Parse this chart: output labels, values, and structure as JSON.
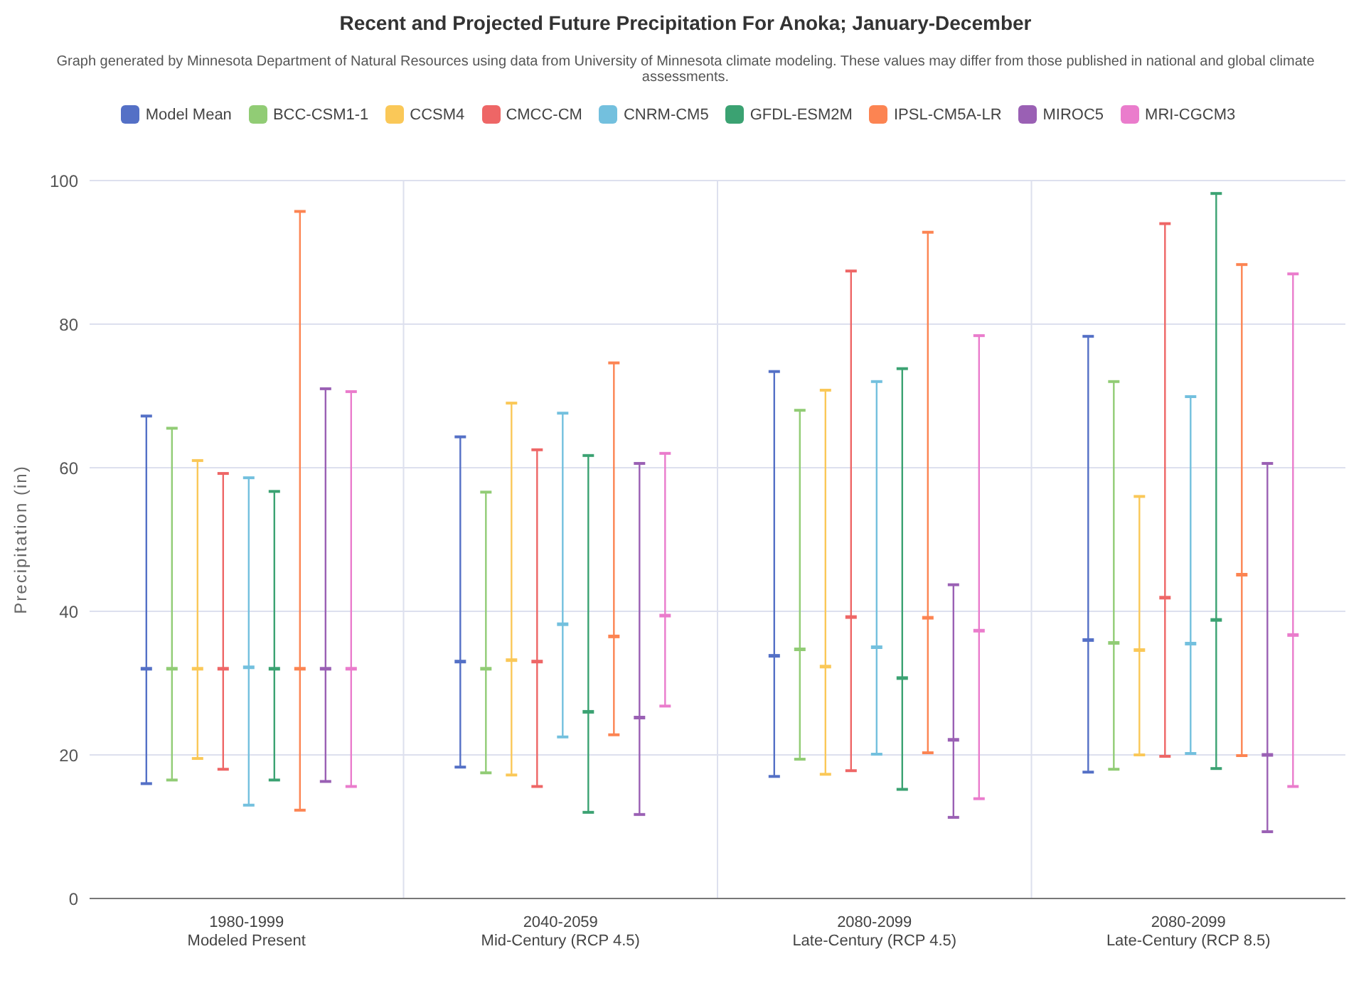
{
  "chart_data": {
    "type": "box",
    "title": "Recent and Projected Future Precipitation For Anoka; January-December",
    "subtitle": "Graph generated by Minnesota Department of Natural Resources using data from University of Minnesota climate modeling. These values may differ from those published in national and global climate assessments.",
    "ylabel": "Precipitation (in)",
    "categories": [
      "1980-1999\nModeled Present",
      "2040-2059\nMid-Century (RCP 4.5)",
      "2080-2099\nLate-Century (RCP 4.5)",
      "2080-2099\nLate-Century (RCP 8.5)"
    ],
    "ylim": [
      0,
      100
    ],
    "yticks": [
      0,
      20,
      40,
      60,
      80,
      100
    ],
    "grid": true,
    "legend": "top",
    "series": [
      {
        "name": "Model Mean",
        "color": "#5470c6",
        "boxes": [
          {
            "low": 16,
            "q1": 32,
            "median": 32,
            "q3": 32,
            "high": 67.2
          },
          {
            "low": 18.3,
            "q1": 33,
            "median": 33,
            "q3": 33,
            "high": 64.3
          },
          {
            "low": 17,
            "q1": 33.8,
            "median": 33.8,
            "q3": 33.8,
            "high": 73.4
          },
          {
            "low": 17.6,
            "q1": 36,
            "median": 36,
            "q3": 36,
            "high": 78.3
          }
        ]
      },
      {
        "name": "BCC-CSM1-1",
        "color": "#91cc75",
        "boxes": [
          {
            "low": 16.5,
            "q1": 32,
            "median": 32,
            "q3": 32,
            "high": 65.5
          },
          {
            "low": 17.5,
            "q1": 32,
            "median": 32,
            "q3": 32,
            "high": 56.6
          },
          {
            "low": 19.4,
            "q1": 34.7,
            "median": 34.7,
            "q3": 34.7,
            "high": 68
          },
          {
            "low": 18,
            "q1": 35.6,
            "median": 35.6,
            "q3": 35.6,
            "high": 72
          }
        ]
      },
      {
        "name": "CCSM4",
        "color": "#fac858",
        "boxes": [
          {
            "low": 19.5,
            "q1": 32,
            "median": 32,
            "q3": 32,
            "high": 61
          },
          {
            "low": 17.2,
            "q1": 33.2,
            "median": 33.2,
            "q3": 33.2,
            "high": 69
          },
          {
            "low": 17.3,
            "q1": 32.3,
            "median": 32.3,
            "q3": 32.3,
            "high": 70.8
          },
          {
            "low": 20,
            "q1": 34.6,
            "median": 34.6,
            "q3": 34.6,
            "high": 56
          }
        ]
      },
      {
        "name": "CMCC-CM",
        "color": "#ee6666",
        "boxes": [
          {
            "low": 18,
            "q1": 32,
            "median": 32,
            "q3": 32,
            "high": 59.2
          },
          {
            "low": 15.6,
            "q1": 33,
            "median": 33,
            "q3": 33,
            "high": 62.5
          },
          {
            "low": 17.8,
            "q1": 39.2,
            "median": 39.2,
            "q3": 39.2,
            "high": 87.4
          },
          {
            "low": 19.8,
            "q1": 41.9,
            "median": 41.9,
            "q3": 41.9,
            "high": 94
          }
        ]
      },
      {
        "name": "CNRM-CM5",
        "color": "#73c0de",
        "boxes": [
          {
            "low": 13,
            "q1": 32.2,
            "median": 32.2,
            "q3": 32.2,
            "high": 58.6
          },
          {
            "low": 22.5,
            "q1": 38.2,
            "median": 38.2,
            "q3": 38.2,
            "high": 67.6
          },
          {
            "low": 20.1,
            "q1": 35,
            "median": 35,
            "q3": 35,
            "high": 72
          },
          {
            "low": 20.2,
            "q1": 35.5,
            "median": 35.5,
            "q3": 35.5,
            "high": 69.9
          }
        ]
      },
      {
        "name": "GFDL-ESM2M",
        "color": "#3ba272",
        "boxes": [
          {
            "low": 16.5,
            "q1": 32,
            "median": 32,
            "q3": 32,
            "high": 56.7
          },
          {
            "low": 12,
            "q1": 26,
            "median": 26,
            "q3": 26,
            "high": 61.7
          },
          {
            "low": 15.2,
            "q1": 30.7,
            "median": 30.7,
            "q3": 30.7,
            "high": 73.8
          },
          {
            "low": 18.1,
            "q1": 38.8,
            "median": 38.8,
            "q3": 38.8,
            "high": 98.2
          }
        ]
      },
      {
        "name": "IPSL-CM5A-LR",
        "color": "#fc8452",
        "boxes": [
          {
            "low": 12.3,
            "q1": 32,
            "median": 32,
            "q3": 32,
            "high": 95.7
          },
          {
            "low": 22.8,
            "q1": 36.5,
            "median": 36.5,
            "q3": 36.5,
            "high": 74.6
          },
          {
            "low": 20.3,
            "q1": 39.1,
            "median": 39.1,
            "q3": 39.1,
            "high": 92.8
          },
          {
            "low": 19.9,
            "q1": 45.1,
            "median": 45.1,
            "q3": 45.1,
            "high": 88.3
          }
        ]
      },
      {
        "name": "MIROC5",
        "color": "#9a60b4",
        "boxes": [
          {
            "low": 16.3,
            "q1": 32,
            "median": 32,
            "q3": 32,
            "high": 71
          },
          {
            "low": 11.7,
            "q1": 25.2,
            "median": 25.2,
            "q3": 25.2,
            "high": 60.6
          },
          {
            "low": 11.3,
            "q1": 22.1,
            "median": 22.1,
            "q3": 22.1,
            "high": 43.7
          },
          {
            "low": 9.3,
            "q1": 20,
            "median": 20,
            "q3": 20,
            "high": 60.6
          }
        ]
      },
      {
        "name": "MRI-CGCM3",
        "color": "#ea7ccc",
        "boxes": [
          {
            "low": 15.6,
            "q1": 32,
            "median": 32,
            "q3": 32,
            "high": 70.6
          },
          {
            "low": 26.8,
            "q1": 39.4,
            "median": 39.4,
            "q3": 39.4,
            "high": 62
          },
          {
            "low": 13.9,
            "q1": 37.3,
            "median": 37.3,
            "q3": 37.3,
            "high": 78.4
          },
          {
            "low": 15.6,
            "q1": 36.7,
            "median": 36.7,
            "q3": 36.7,
            "high": 87
          }
        ]
      }
    ]
  }
}
